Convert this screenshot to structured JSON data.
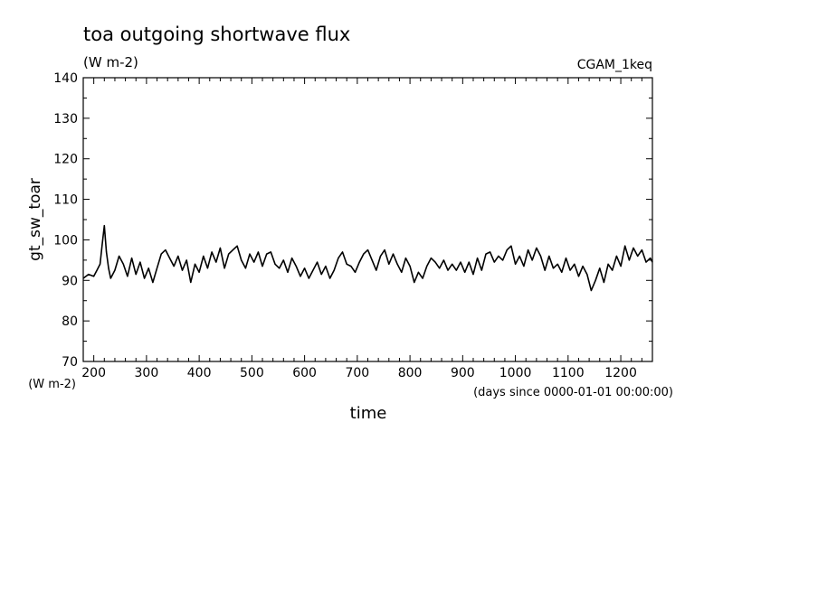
{
  "chart_data": {
    "type": "line",
    "title": "toa outgoing shortwave flux",
    "title_units": "(W m-2)",
    "dataset": "CGAM_1keq",
    "ylabel": "gt_sw_toar",
    "yunits": "(W m-2)",
    "xlabel": "time",
    "xunits": "(days since 0000-01-01 00:00:00)",
    "xlim": [
      180,
      1260
    ],
    "ylim": [
      70,
      140
    ],
    "xticks": [
      200,
      300,
      400,
      500,
      600,
      700,
      800,
      900,
      1000,
      1100,
      1200
    ],
    "yticks": [
      70,
      80,
      90,
      100,
      110,
      120,
      130,
      140
    ],
    "grid": false,
    "series": [
      {
        "points": [
          [
            180,
            90.5
          ],
          [
            190,
            91.5
          ],
          [
            200,
            91.0
          ],
          [
            206,
            92.5
          ],
          [
            212,
            94.0
          ],
          [
            216,
            99.0
          ],
          [
            220,
            103.5
          ],
          [
            224,
            97.0
          ],
          [
            228,
            93.0
          ],
          [
            232,
            90.5
          ],
          [
            240,
            92.5
          ],
          [
            248,
            96.0
          ],
          [
            256,
            94.0
          ],
          [
            264,
            91.0
          ],
          [
            272,
            95.5
          ],
          [
            280,
            91.5
          ],
          [
            288,
            94.5
          ],
          [
            296,
            90.5
          ],
          [
            304,
            93.0
          ],
          [
            312,
            89.5
          ],
          [
            320,
            93.0
          ],
          [
            328,
            96.5
          ],
          [
            336,
            97.5
          ],
          [
            344,
            95.5
          ],
          [
            352,
            93.5
          ],
          [
            360,
            96.0
          ],
          [
            368,
            92.5
          ],
          [
            376,
            95.0
          ],
          [
            384,
            89.5
          ],
          [
            392,
            94.0
          ],
          [
            400,
            92.0
          ],
          [
            408,
            96.0
          ],
          [
            416,
            93.0
          ],
          [
            424,
            97.0
          ],
          [
            432,
            94.5
          ],
          [
            440,
            98.0
          ],
          [
            448,
            93.0
          ],
          [
            456,
            96.5
          ],
          [
            464,
            97.5
          ],
          [
            472,
            98.5
          ],
          [
            480,
            95.0
          ],
          [
            488,
            93.0
          ],
          [
            496,
            96.5
          ],
          [
            504,
            94.5
          ],
          [
            512,
            97.0
          ],
          [
            520,
            93.5
          ],
          [
            528,
            96.5
          ],
          [
            536,
            97.0
          ],
          [
            544,
            94.0
          ],
          [
            552,
            93.0
          ],
          [
            560,
            95.0
          ],
          [
            568,
            92.0
          ],
          [
            576,
            95.5
          ],
          [
            584,
            93.5
          ],
          [
            592,
            91.0
          ],
          [
            600,
            93.0
          ],
          [
            608,
            90.5
          ],
          [
            616,
            92.5
          ],
          [
            624,
            94.5
          ],
          [
            632,
            91.5
          ],
          [
            640,
            93.5
          ],
          [
            648,
            90.5
          ],
          [
            656,
            92.5
          ],
          [
            664,
            95.5
          ],
          [
            672,
            97.0
          ],
          [
            680,
            94.0
          ],
          [
            688,
            93.5
          ],
          [
            696,
            92.0
          ],
          [
            704,
            94.5
          ],
          [
            712,
            96.5
          ],
          [
            720,
            97.5
          ],
          [
            728,
            95.0
          ],
          [
            736,
            92.5
          ],
          [
            744,
            96.0
          ],
          [
            752,
            97.5
          ],
          [
            760,
            94.0
          ],
          [
            768,
            96.5
          ],
          [
            776,
            94.0
          ],
          [
            784,
            92.0
          ],
          [
            792,
            95.5
          ],
          [
            800,
            93.5
          ],
          [
            808,
            89.5
          ],
          [
            816,
            92.0
          ],
          [
            824,
            90.5
          ],
          [
            832,
            93.5
          ],
          [
            840,
            95.5
          ],
          [
            848,
            94.5
          ],
          [
            856,
            93.0
          ],
          [
            864,
            95.0
          ],
          [
            872,
            92.5
          ],
          [
            880,
            94.0
          ],
          [
            888,
            92.5
          ],
          [
            896,
            94.5
          ],
          [
            904,
            92.0
          ],
          [
            912,
            94.5
          ],
          [
            920,
            91.5
          ],
          [
            928,
            95.5
          ],
          [
            936,
            92.5
          ],
          [
            944,
            96.5
          ],
          [
            952,
            97.0
          ],
          [
            960,
            94.5
          ],
          [
            968,
            96.0
          ],
          [
            976,
            95.0
          ],
          [
            984,
            97.5
          ],
          [
            992,
            98.5
          ],
          [
            1000,
            94.0
          ],
          [
            1008,
            96.0
          ],
          [
            1016,
            93.5
          ],
          [
            1024,
            97.5
          ],
          [
            1032,
            95.0
          ],
          [
            1040,
            98.0
          ],
          [
            1048,
            96.0
          ],
          [
            1056,
            92.5
          ],
          [
            1064,
            96.0
          ],
          [
            1072,
            93.0
          ],
          [
            1080,
            94.0
          ],
          [
            1088,
            92.0
          ],
          [
            1096,
            95.5
          ],
          [
            1104,
            92.5
          ],
          [
            1112,
            94.0
          ],
          [
            1120,
            91.0
          ],
          [
            1128,
            93.5
          ],
          [
            1136,
            91.5
          ],
          [
            1144,
            87.5
          ],
          [
            1152,
            90.0
          ],
          [
            1160,
            93.0
          ],
          [
            1168,
            89.5
          ],
          [
            1176,
            94.0
          ],
          [
            1184,
            92.5
          ],
          [
            1192,
            96.0
          ],
          [
            1200,
            93.5
          ],
          [
            1208,
            98.5
          ],
          [
            1216,
            95.0
          ],
          [
            1224,
            98.0
          ],
          [
            1232,
            96.0
          ],
          [
            1240,
            97.5
          ],
          [
            1248,
            94.5
          ],
          [
            1256,
            95.5
          ],
          [
            1260,
            94.5
          ]
        ]
      }
    ]
  }
}
